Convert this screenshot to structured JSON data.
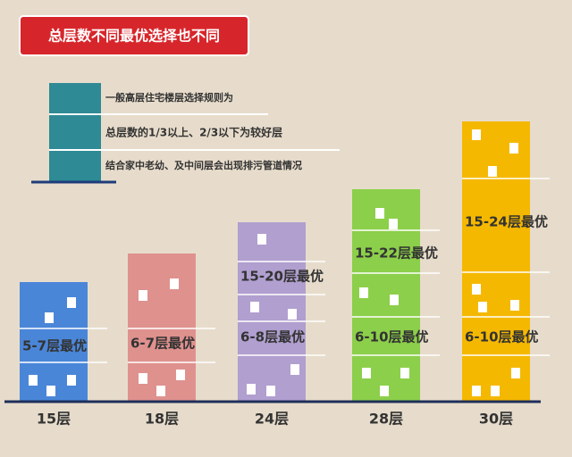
{
  "title": "总层数不同最优选择也不同",
  "legend": {
    "lines": [
      "一般高层住宅楼层选择规则为",
      "总层数的1/3以上、2/3以下为较好层",
      "结合家中老幼、及中间层会出现排污管道情况"
    ]
  },
  "buildings": [
    {
      "label": "15层",
      "notes": [
        "5-7层最优"
      ]
    },
    {
      "label": "18层",
      "notes": [
        "6-7层最优"
      ]
    },
    {
      "label": "24层",
      "notes": [
        "15-20层最优",
        "6-8层最优"
      ]
    },
    {
      "label": "28层",
      "notes": [
        "15-22层最优",
        "6-10层最优"
      ]
    },
    {
      "label": "30层",
      "notes": [
        "15-24层最优",
        "6-10层最优"
      ]
    }
  ]
}
